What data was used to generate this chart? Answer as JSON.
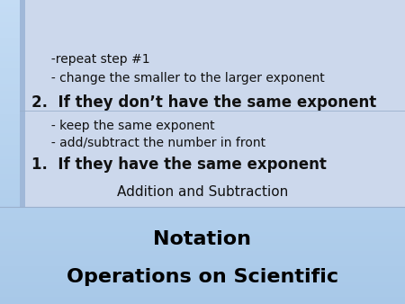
{
  "title_line1": "Operations on Scientific",
  "title_line2": "Notation",
  "subtitle": "Addition and Subtraction",
  "bg_color_top": "#a8c8e8",
  "bg_color_bottom": "#c4dcf4",
  "content_bg": "#ccd8ec",
  "left_bar_color": "#a0b8d8",
  "sep_line_color": "#9ab0cc",
  "title_color": "#000000",
  "subtitle_color": "#111111",
  "body_color": "#111111",
  "title_fontsize": 16,
  "subtitle_fontsize": 11,
  "body_fontsize_main": 12,
  "body_fontsize_sub": 10,
  "bullet1_main": "1.  If they have the same exponent",
  "bullet1_sub1": "     - add/subtract the number in front",
  "bullet1_sub2": "     - keep the same exponent",
  "bullet2_main": "2.  If they don’t have the same exponent",
  "bullet2_sub1": "     - change the smaller to the larger exponent",
  "bullet2_sub2": "     -repeat step #1"
}
